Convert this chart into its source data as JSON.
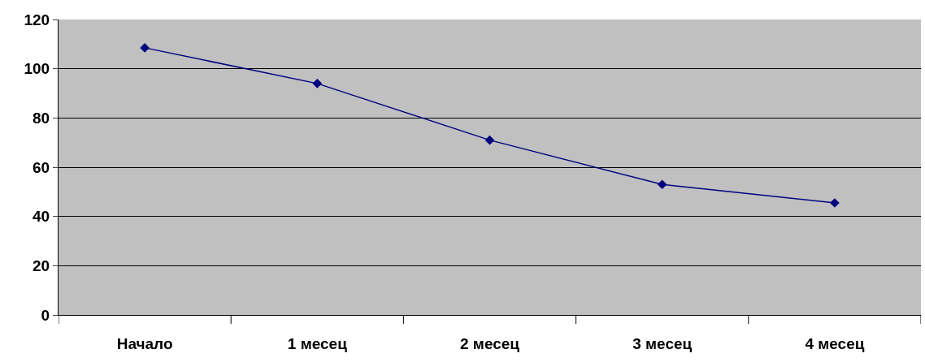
{
  "chart_data": {
    "type": "line",
    "categories": [
      "Начало",
      "1 месец",
      "2 месец",
      "3 месец",
      "4 месец"
    ],
    "series": [
      {
        "color": "#000080",
        "values": [
          108.5,
          94,
          71,
          53,
          45.5
        ]
      }
    ],
    "ylim": [
      0,
      120
    ],
    "yticks": [
      0,
      20,
      40,
      60,
      80,
      100,
      120
    ],
    "grid": "y",
    "marker": "diamond",
    "line_style": "solid"
  }
}
